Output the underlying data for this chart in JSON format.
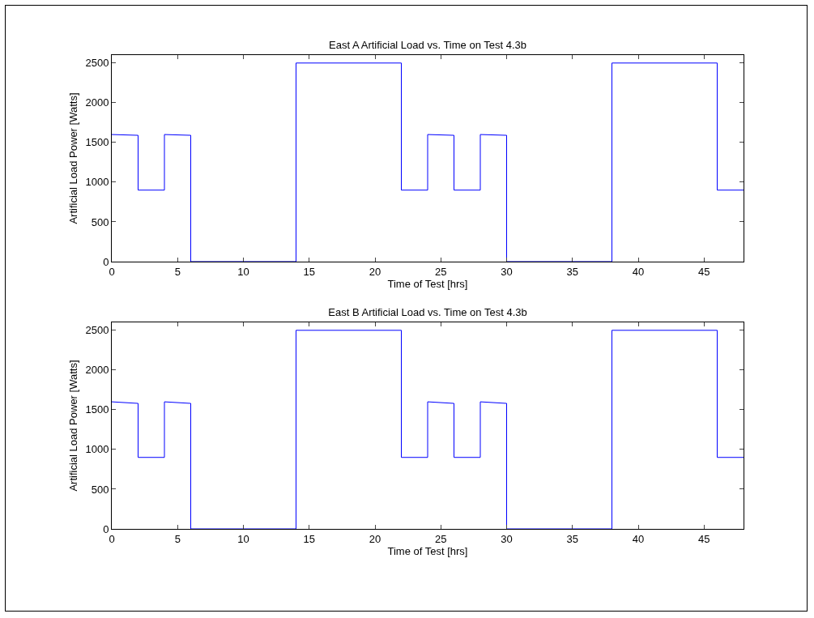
{
  "chart_data": [
    {
      "type": "line",
      "title": "East A Artificial Load vs. Time on Test 4.3b",
      "xlabel": "Time of Test [hrs]",
      "ylabel": "Artificial Load Power [Watts]",
      "x": [
        0,
        2,
        2,
        4,
        4,
        6,
        6,
        14,
        14,
        22,
        22,
        24,
        24,
        26,
        26,
        28,
        28,
        30,
        30,
        38,
        38,
        46,
        46,
        48
      ],
      "values": [
        1600,
        1590,
        900,
        900,
        1600,
        1590,
        0,
        0,
        2500,
        2500,
        900,
        900,
        1600,
        1590,
        900,
        900,
        1600,
        1590,
        0,
        0,
        2500,
        2500,
        900,
        900
      ],
      "color": "#0000ff",
      "xlim": [
        0,
        48
      ],
      "xticks": [
        0,
        5,
        10,
        15,
        20,
        25,
        30,
        35,
        40,
        45
      ],
      "ylim": [
        0,
        2600
      ],
      "yticks": [
        0,
        500,
        1000,
        1500,
        2000,
        2500
      ],
      "grid": false
    },
    {
      "type": "line",
      "title": "East B Artificial Load vs. Time on Test 4.3b",
      "xlabel": "Time of Test [hrs]",
      "ylabel": "Artificial Load Power [Watts]",
      "x": [
        0,
        2,
        2,
        4,
        4,
        6,
        6,
        14,
        14,
        22,
        22,
        24,
        24,
        26,
        26,
        28,
        28,
        30,
        30,
        38,
        38,
        46,
        46,
        48
      ],
      "values": [
        1600,
        1580,
        900,
        900,
        1600,
        1580,
        0,
        0,
        2500,
        2500,
        900,
        900,
        1600,
        1580,
        900,
        900,
        1600,
        1580,
        0,
        0,
        2500,
        2500,
        900,
        900
      ],
      "color": "#0000ff",
      "xlim": [
        0,
        48
      ],
      "xticks": [
        0,
        5,
        10,
        15,
        20,
        25,
        30,
        35,
        40,
        45
      ],
      "ylim": [
        0,
        2600
      ],
      "yticks": [
        0,
        500,
        1000,
        1500,
        2000,
        2500
      ],
      "grid": false
    }
  ]
}
